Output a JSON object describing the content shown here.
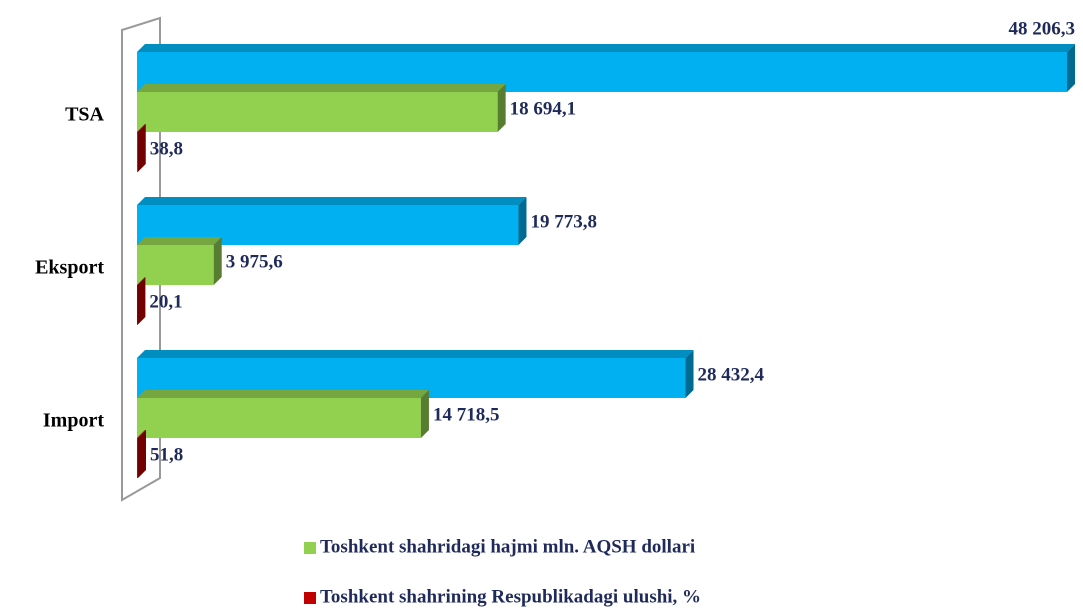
{
  "chart_data": {
    "type": "bar",
    "orientation": "horizontal",
    "categories": [
      "TSA",
      "Eksport",
      "Import"
    ],
    "series": [
      {
        "color": "#00b0f0",
        "values": [
          48206.3,
          19773.8,
          28432.4
        ],
        "value_labels": [
          "48 206,3",
          "19 773,8",
          "28 432,4"
        ]
      },
      {
        "name": "Toshkent shahridagi hajmi mln. AQSH dollari",
        "color": "#92d050",
        "values": [
          18694.1,
          3975.6,
          14718.5
        ],
        "value_labels": [
          "18 694,1",
          "3 975,6",
          "14 718,5"
        ]
      },
      {
        "name": "Toshkent shahrining Respublikadagi ulushi, %",
        "color": "#c00000",
        "values": [
          38.8,
          20.1,
          51.8
        ],
        "value_labels": [
          "38,8",
          "20,1",
          "51,8"
        ]
      }
    ]
  }
}
